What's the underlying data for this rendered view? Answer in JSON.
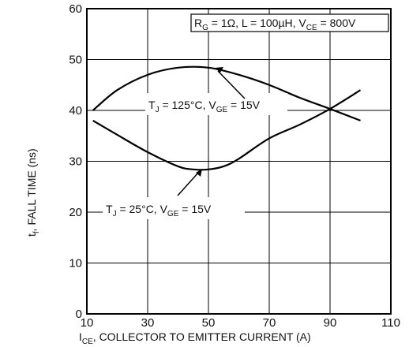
{
  "chart_data": {
    "type": "line",
    "x_axis": {
      "label_main": "I",
      "label_sub": "CE",
      "label_rest": ", COLLECTOR TO EMITTER CURRENT (A)",
      "range": [
        10,
        110
      ],
      "ticks": [
        10,
        30,
        50,
        70,
        90,
        110
      ]
    },
    "y_axis": {
      "label_main": "t",
      "label_sub": "f",
      "label_rest": ", FALL TIME (ns)",
      "range": [
        0,
        60
      ],
      "ticks": [
        0,
        10,
        20,
        30,
        40,
        50,
        60
      ]
    },
    "grid": true,
    "conditions": {
      "r_main": "R",
      "r_sub": "G",
      "r_rest": " = 1Ω, L = 100µH, V",
      "v_sub": "CE",
      "v_rest": " = 800V"
    },
    "series": [
      {
        "name_main": "T",
        "name_sub1": "J",
        "name_mid": " = 125°C, V",
        "name_sub2": "GE",
        "name_rest": " = 15V",
        "points": [
          [
            12,
            40
          ],
          [
            20,
            44
          ],
          [
            30,
            47
          ],
          [
            40,
            48.4
          ],
          [
            50,
            48.4
          ],
          [
            60,
            47
          ],
          [
            70,
            45
          ],
          [
            80,
            42.5
          ],
          [
            90,
            40.3
          ],
          [
            100,
            38
          ]
        ]
      },
      {
        "name_main": "T",
        "name_sub1": "J",
        "name_mid": " = 25°C, V",
        "name_sub2": "GE",
        "name_rest": " = 15V",
        "points": [
          [
            12,
            38
          ],
          [
            20,
            35.2
          ],
          [
            30,
            31.8
          ],
          [
            40,
            29
          ],
          [
            45,
            28.4
          ],
          [
            50,
            28.4
          ],
          [
            55,
            29
          ],
          [
            60,
            30.5
          ],
          [
            70,
            34.5
          ],
          [
            80,
            37.2
          ],
          [
            90,
            40.3
          ],
          [
            100,
            44
          ]
        ]
      }
    ]
  }
}
